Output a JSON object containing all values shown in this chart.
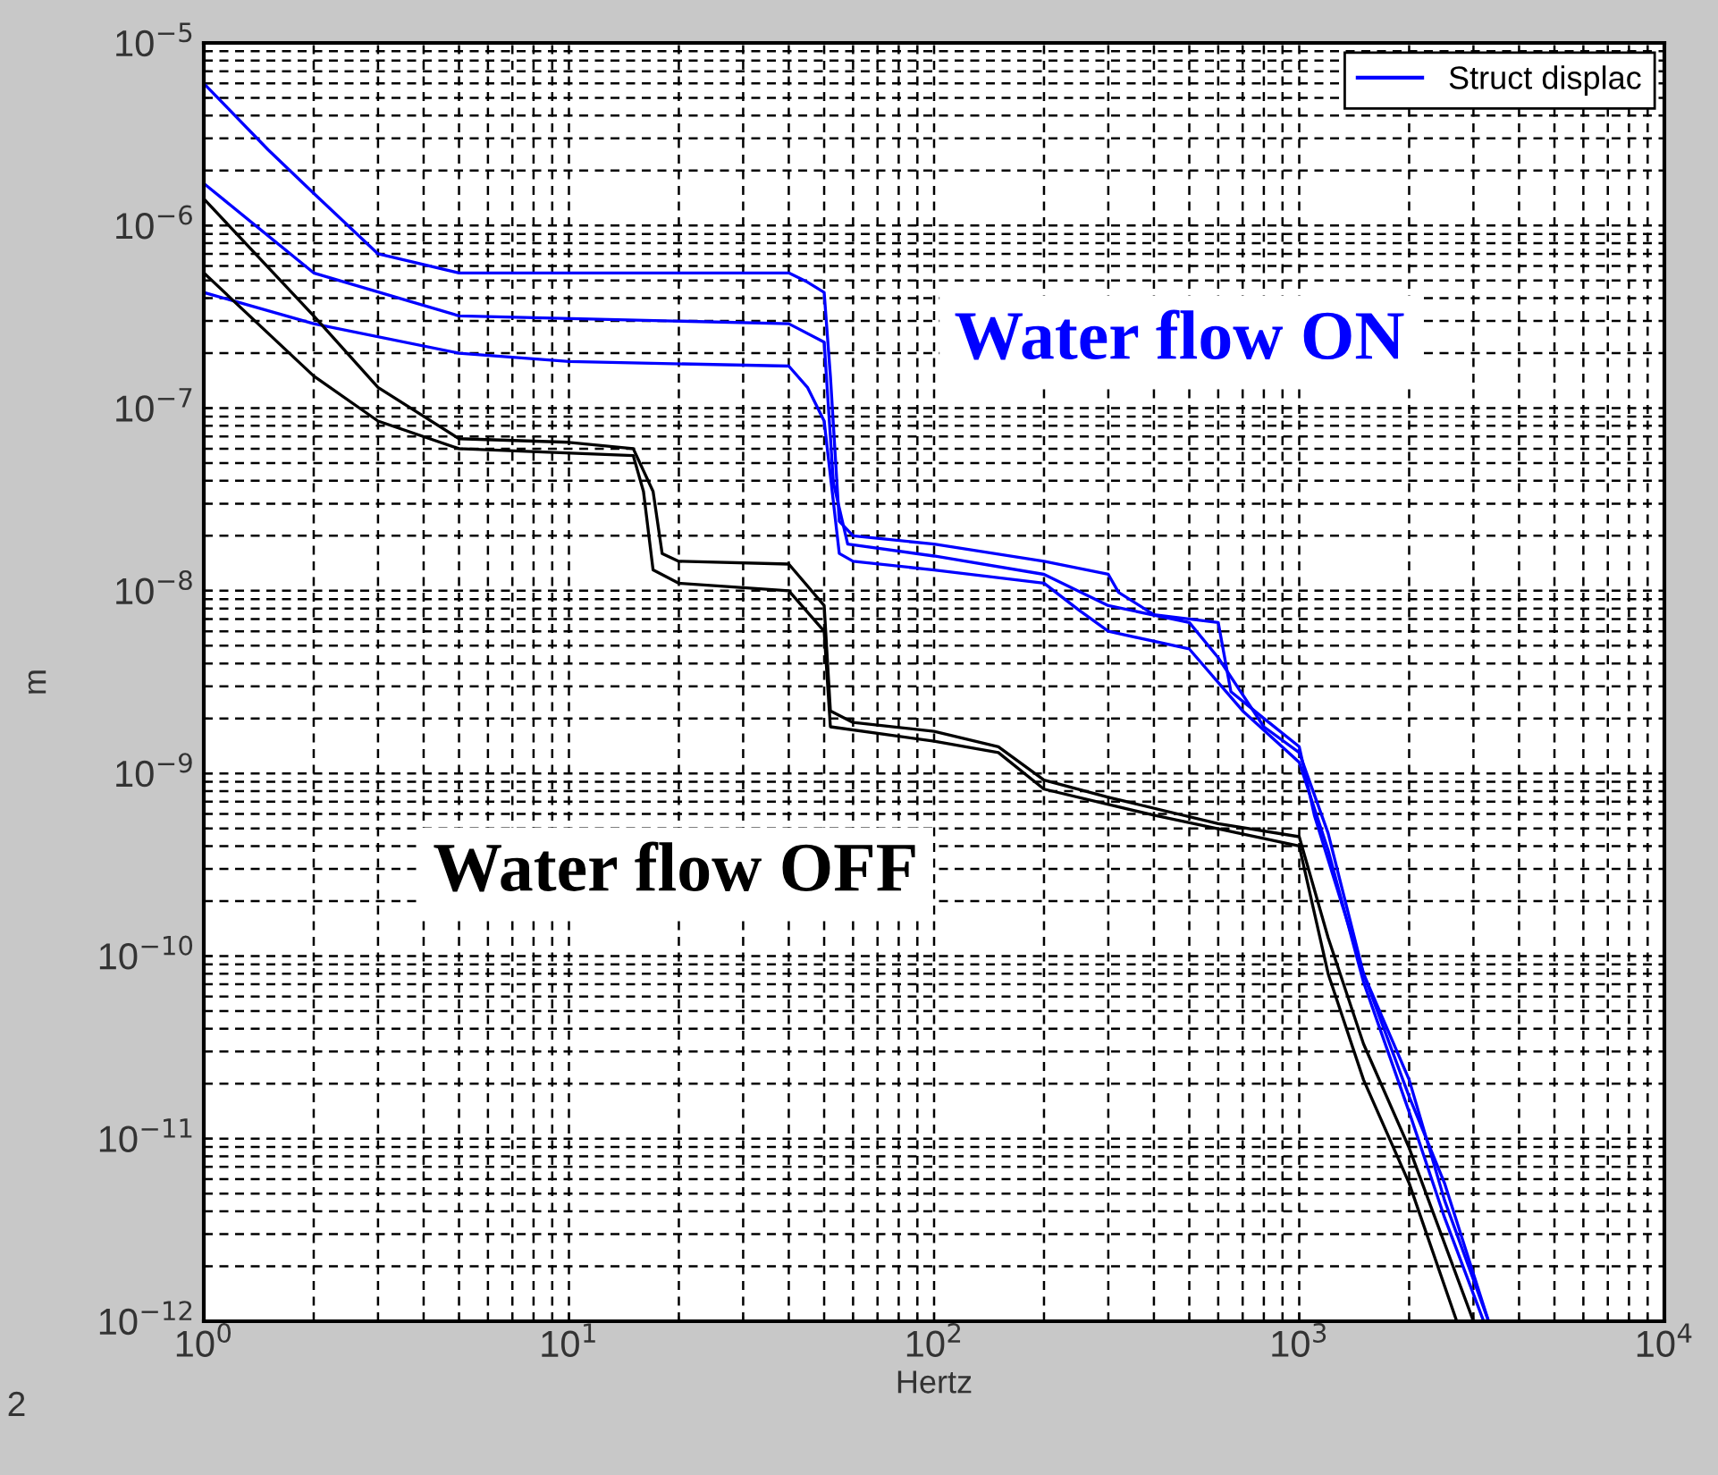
{
  "chart_data": {
    "type": "line",
    "xlabel": "Hertz",
    "ylabel": "m",
    "log": "xy",
    "grid": true,
    "legend": "top right",
    "line_style": "solid",
    "marker": "none",
    "xlim": [
      1,
      10000
    ],
    "xticks": [
      {
        "value": 1,
        "label": "10$^{0}$"
      },
      {
        "value": 10,
        "label": "10$^{1}$"
      },
      {
        "value": 100,
        "label": "10$^{2}$"
      },
      {
        "value": 1000,
        "label": "10$^{3}$"
      },
      {
        "value": 10000,
        "label": "10$^{4}$"
      }
    ],
    "ylim": [
      1e-12,
      1e-05
    ],
    "yticks": [
      {
        "value": 1e-12,
        "label": "10$^{−12}$"
      },
      {
        "value": 1e-11,
        "label": "10$^{−11}$"
      },
      {
        "value": 1e-10,
        "label": "10$^{−10}$"
      },
      {
        "value": 1e-09,
        "label": "10$^{−9}$"
      },
      {
        "value": 1e-08,
        "label": "10$^{−8}$"
      },
      {
        "value": 1e-07,
        "label": "10$^{−7}$"
      },
      {
        "value": 1e-06,
        "label": "10$^{−6}$"
      },
      {
        "value": 1e-05,
        "label": "10$^{−5}$"
      }
    ],
    "series": [
      {
        "name": "Struct displac",
        "color": "#0000ff",
        "x": [
          1,
          1.5,
          2,
          3,
          5,
          40,
          45,
          50,
          52,
          55,
          60,
          100,
          200,
          300,
          320,
          400,
          600,
          650,
          800,
          1000,
          1100,
          1500,
          2000,
          2500,
          3300
        ],
        "values": [
          6e-06,
          2.6e-06,
          1.5e-06,
          7e-07,
          5.5e-07,
          5.5e-07,
          4.9e-07,
          4.3e-07,
          1.5e-07,
          2.4e-08,
          2e-08,
          1.8e-08,
          1.45e-08,
          1.23e-08,
          9.8e-09,
          7.4e-09,
          6.7e-09,
          2.8e-09,
          2e-09,
          1.4e-09,
          5.9e-10,
          8e-11,
          1.7e-11,
          5.7e-12,
          1e-12
        ]
      },
      {
        "color": "#0000ff",
        "x": [
          1,
          2,
          5,
          40,
          50,
          53,
          58,
          100,
          200,
          300,
          500,
          600,
          800,
          1000,
          1200,
          1500,
          2000,
          2500,
          3300
        ],
        "values": [
          1.7e-06,
          5.5e-07,
          3.2e-07,
          2.9e-07,
          2.3e-07,
          3.9e-08,
          1.8e-08,
          1.55e-08,
          1.23e-08,
          8.3e-09,
          6.7e-09,
          4.3e-09,
          1.8e-09,
          1.3e-09,
          4.7e-10,
          8e-11,
          2.1e-11,
          4.6e-12,
          1e-12
        ]
      },
      {
        "color": "#0000ff",
        "x": [
          1,
          2,
          5,
          10,
          40,
          45,
          50,
          55,
          60,
          100,
          200,
          250,
          300,
          500,
          700,
          1000,
          1200,
          1500,
          2000,
          2500,
          3200
        ],
        "values": [
          4.3e-07,
          2.9e-07,
          2e-07,
          1.8e-07,
          1.7e-07,
          1.3e-07,
          8.5e-08,
          1.6e-08,
          1.45e-08,
          1.3e-08,
          1.1e-08,
          7.8e-09,
          6e-09,
          4.8e-09,
          2.2e-09,
          1.15e-09,
          3.8e-10,
          7.2e-11,
          1.4e-11,
          3.7e-12,
          1e-12
        ]
      },
      {
        "color": "#000000",
        "x": [
          1,
          2,
          3,
          5,
          10,
          15,
          17,
          18,
          20,
          40,
          50,
          52,
          60,
          100,
          150,
          200,
          300,
          600,
          1000,
          1200,
          1500,
          2000,
          3000
        ],
        "values": [
          1.4e-06,
          3.2e-07,
          1.3e-07,
          6.8e-08,
          6.5e-08,
          6e-08,
          3.5e-08,
          1.6e-08,
          1.45e-08,
          1.4e-08,
          8.3e-09,
          2.2e-09,
          1.9e-09,
          1.7e-09,
          1.4e-09,
          9.2e-10,
          7.4e-10,
          5.3e-10,
          4.5e-10,
          1.26e-10,
          3.3e-11,
          8.9e-12,
          1e-12
        ]
      },
      {
        "color": "#000000",
        "x": [
          1,
          2,
          3,
          5,
          15,
          16,
          17,
          20,
          40,
          50,
          52,
          100,
          150,
          200,
          400,
          1000,
          1200,
          1500,
          2000,
          2700
        ],
        "values": [
          5.5e-07,
          1.5e-07,
          8.5e-08,
          6e-08,
          5.5e-08,
          3.5e-08,
          1.3e-08,
          1.1e-08,
          1e-08,
          6e-09,
          1.8e-09,
          1.5e-09,
          1.3e-09,
          8.2e-10,
          5.9e-10,
          4e-10,
          8e-11,
          2.1e-11,
          5.7e-12,
          1e-12
        ]
      }
    ],
    "annotations": [
      "Water flow ON",
      "Water flow OFF",
      "2"
    ]
  }
}
